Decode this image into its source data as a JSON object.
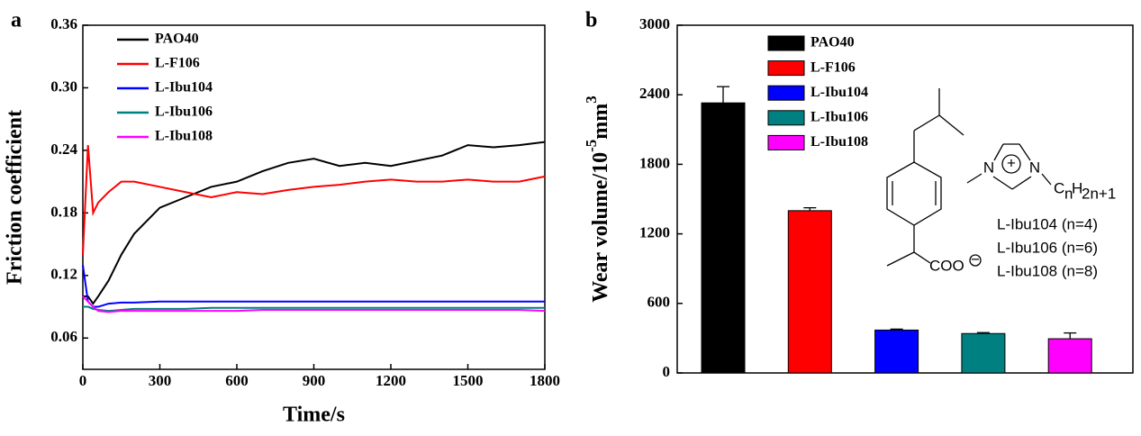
{
  "chart_data": [
    {
      "type": "line",
      "panel_label": "a",
      "x_label": "Time/s",
      "y_label": "Friction coefficient",
      "x": [
        0,
        20,
        40,
        60,
        100,
        150,
        200,
        300,
        400,
        500,
        600,
        700,
        800,
        900,
        1000,
        1100,
        1200,
        1300,
        1400,
        1500,
        1600,
        1700,
        1800
      ],
      "series": [
        {
          "name": "PAO40",
          "color": "#000000",
          "values": [
            0.1,
            0.1,
            0.093,
            0.1,
            0.115,
            0.14,
            0.16,
            0.185,
            0.195,
            0.205,
            0.21,
            0.22,
            0.228,
            0.232,
            0.225,
            0.228,
            0.225,
            0.23,
            0.235,
            0.245,
            0.243,
            0.245,
            0.248
          ]
        },
        {
          "name": "L-F106",
          "color": "#ff0000",
          "values": [
            0.14,
            0.245,
            0.18,
            0.19,
            0.2,
            0.21,
            0.21,
            0.205,
            0.2,
            0.195,
            0.2,
            0.198,
            0.202,
            0.205,
            0.207,
            0.21,
            0.212,
            0.21,
            0.21,
            0.212,
            0.21,
            0.21,
            0.215
          ]
        },
        {
          "name": "L-Ibu104",
          "color": "#0000ff",
          "values": [
            0.13,
            0.095,
            0.09,
            0.09,
            0.093,
            0.094,
            0.094,
            0.095,
            0.095,
            0.095,
            0.095,
            0.095,
            0.095,
            0.095,
            0.095,
            0.095,
            0.095,
            0.095,
            0.095,
            0.095,
            0.095,
            0.095,
            0.095
          ]
        },
        {
          "name": "L-Ibu106",
          "color": "#008080",
          "values": [
            0.09,
            0.09,
            0.088,
            0.087,
            0.086,
            0.087,
            0.088,
            0.088,
            0.088,
            0.089,
            0.089,
            0.089,
            0.089,
            0.089,
            0.089,
            0.089,
            0.089,
            0.089,
            0.089,
            0.089,
            0.089,
            0.089,
            0.089
          ]
        },
        {
          "name": "L-Ibu108",
          "color": "#ff00ff",
          "values": [
            0.1,
            0.095,
            0.09,
            0.086,
            0.085,
            0.086,
            0.086,
            0.086,
            0.086,
            0.086,
            0.086,
            0.087,
            0.087,
            0.087,
            0.087,
            0.087,
            0.087,
            0.087,
            0.087,
            0.087,
            0.087,
            0.087,
            0.086
          ]
        }
      ],
      "xlim": [
        0,
        1800
      ],
      "xticks": [
        0,
        300,
        600,
        900,
        1200,
        1500,
        1800
      ],
      "ylim": [
        0.03,
        0.36
      ],
      "yticks": [
        0.06,
        0.12,
        0.18,
        0.24,
        {
          "value": 0.3,
          "label": "0.30"
        },
        0.36
      ],
      "legend": "upper left"
    },
    {
      "type": "bar",
      "panel_label": "b",
      "y_label": {
        "text": "Wear volume/10",
        "power": "-5",
        "unit": "mm",
        "unit_power": "3"
      },
      "categories": [
        "PAO40",
        "L-F106",
        "L-Ibu104",
        "L-Ibu106",
        "L-Ibu108"
      ],
      "values": [
        2330,
        1400,
        370,
        340,
        295
      ],
      "errors": [
        140,
        25,
        8,
        8,
        50
      ],
      "colors": [
        "#000000",
        "#ff0000",
        "#0000ff",
        "#008080",
        "#ff00ff"
      ],
      "ylim": [
        0,
        3000
      ],
      "yticks": [
        0,
        600,
        1200,
        1800,
        2400,
        3000
      ],
      "legend": "upper center",
      "annotations": [
        "N",
        "N",
        "+",
        "C",
        "n",
        "H",
        "2n+1",
        "COO",
        "−",
        "L-Ibu104 (n=4)",
        "L-Ibu106 (n=6)",
        "L-Ibu108 (n=8)"
      ]
    }
  ]
}
